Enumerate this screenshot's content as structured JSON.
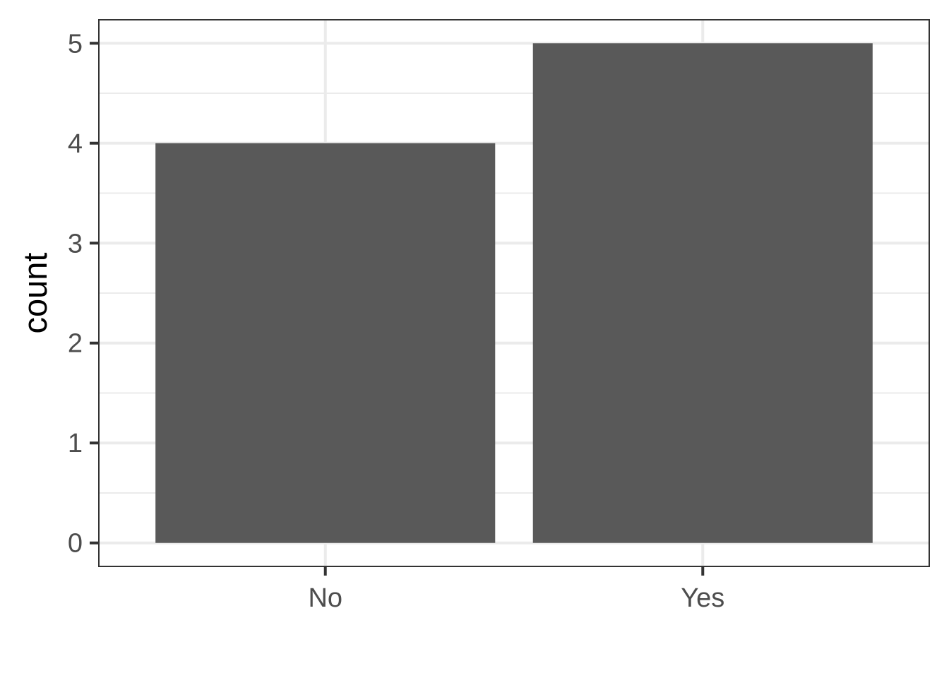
{
  "chart_data": {
    "type": "bar",
    "categories": [
      "No",
      "Yes"
    ],
    "values": [
      4,
      5
    ],
    "title": "",
    "xlabel": "",
    "ylabel": "count",
    "ylim": [
      -0.235,
      5.235
    ],
    "yticks": [
      0,
      1,
      2,
      3,
      4,
      5
    ],
    "grid": true,
    "legend": "none",
    "colors": {
      "bar": "#595959",
      "grid": "#ebebeb",
      "border": "#333333",
      "tick_label": "#4d4d4d",
      "background": "#ffffff"
    }
  }
}
